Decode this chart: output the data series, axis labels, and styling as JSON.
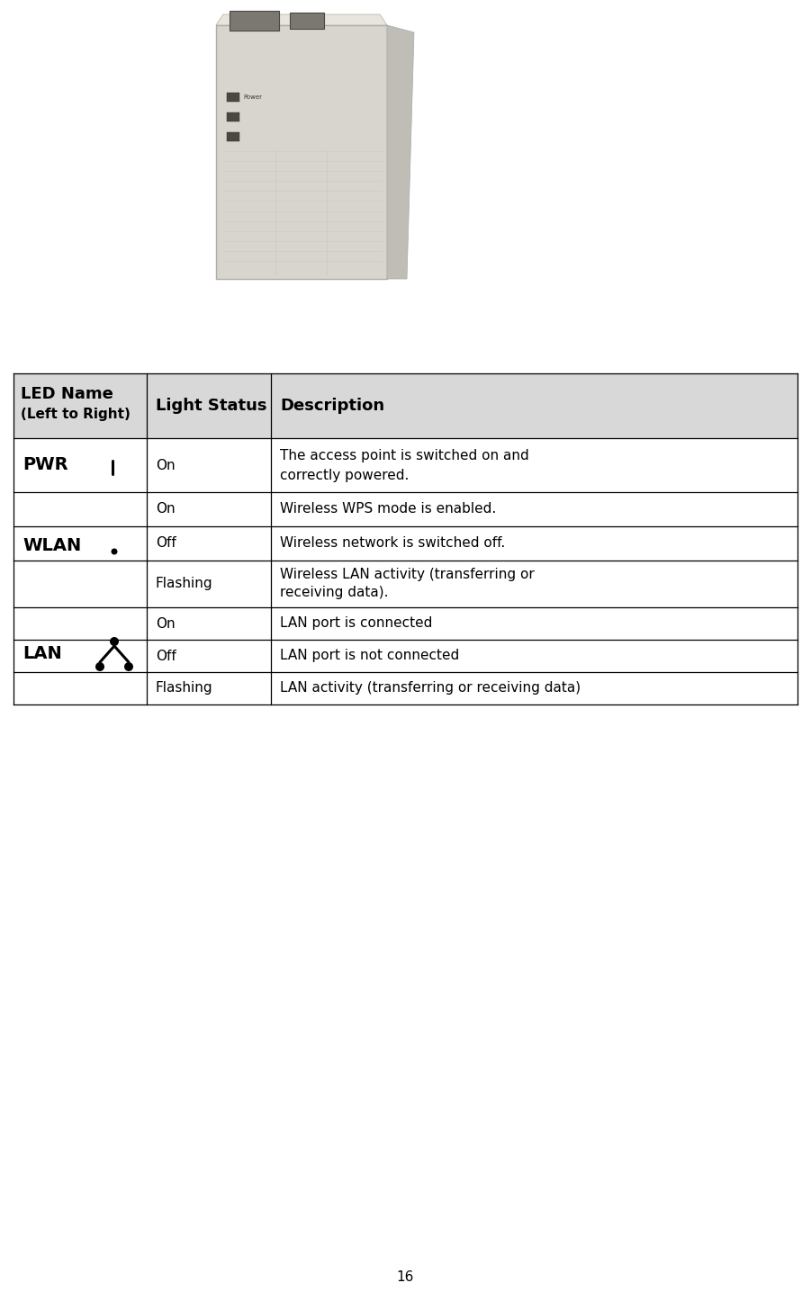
{
  "page_number": "16",
  "bg_color": "#ffffff",
  "table_header_bg": "#d8d8d8",
  "header_col1_line1": "LED Name",
  "header_col1_line2": "(Left to Right)",
  "header_col2": "Light Status",
  "header_col3": "Description",
  "pwr_status": "On",
  "pwr_desc_line1": "The access point is switched on and",
  "pwr_desc_line2": "correctly powered.",
  "wlan_rows": [
    [
      "On",
      "Wireless WPS mode is enabled."
    ],
    [
      "Off",
      "Wireless network is switched off."
    ],
    [
      "Flashing",
      "Wireless LAN activity (transferring or",
      "receiving data)."
    ]
  ],
  "lan_rows": [
    [
      "On",
      "LAN port is connected"
    ],
    [
      "Off",
      "LAN port is not connected"
    ],
    [
      "Flashing",
      "LAN activity (transferring or receiving data)"
    ]
  ]
}
